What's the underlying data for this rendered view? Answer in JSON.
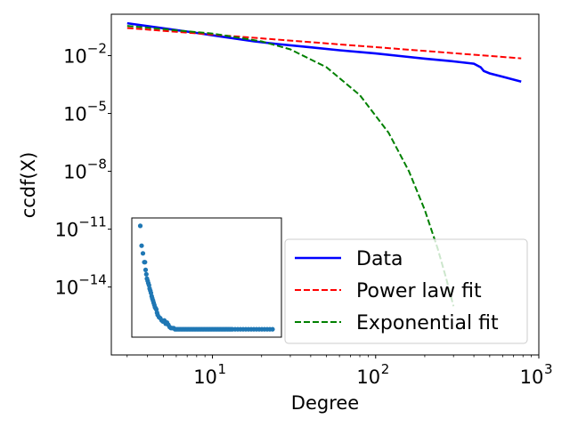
{
  "chart_data": {
    "type": "line",
    "xlabel": "Degree",
    "ylabel": "ccdf(X)",
    "xscale": "log",
    "yscale": "log",
    "xlim": [
      2.4,
      1000
    ],
    "ylim": [
      3e-18,
      1.4
    ],
    "x_ticks": [
      {
        "value": 10,
        "base": "10",
        "exp": "1"
      },
      {
        "value": 100,
        "base": "10",
        "exp": "2"
      },
      {
        "value": 1000,
        "base": "10",
        "exp": "3"
      }
    ],
    "y_ticks": [
      {
        "value": 0.01,
        "base": "10",
        "exp": "−2"
      },
      {
        "value": 1e-05,
        "base": "10",
        "exp": "−5"
      },
      {
        "value": 1e-08,
        "base": "10",
        "exp": "−8"
      },
      {
        "value": 1e-11,
        "base": "10",
        "exp": "−11"
      },
      {
        "value": 1e-14,
        "base": "10",
        "exp": "−14"
      }
    ],
    "series": [
      {
        "name": "Data",
        "color": "#0000ff",
        "style": "solid",
        "x": [
          3,
          5,
          8,
          12,
          18,
          25,
          40,
          60,
          100,
          150,
          200,
          300,
          400,
          440,
          460,
          500,
          600,
          780
        ],
        "y": [
          0.48,
          0.26,
          0.15,
          0.09,
          0.055,
          0.04,
          0.027,
          0.019,
          0.013,
          0.009,
          0.007,
          0.005,
          0.0038,
          0.0025,
          0.0016,
          0.0012,
          0.0008,
          0.00045
        ]
      },
      {
        "name": "Power law fit",
        "color": "#ff0000",
        "style": "dashed",
        "x": [
          3,
          780
        ],
        "y": [
          0.27,
          0.0072
        ]
      },
      {
        "name": "Exponential fit",
        "color": "#008000",
        "style": "dashed",
        "x": [
          3,
          10,
          20,
          30,
          50,
          80,
          120,
          160,
          200,
          240,
          270,
          300
        ],
        "y": [
          0.35,
          0.14,
          0.055,
          0.021,
          0.0025,
          9e-05,
          1e-06,
          1e-08,
          1e-10,
          1e-12,
          3e-14,
          1e-15
        ]
      }
    ],
    "legend": {
      "position": "lower-right"
    },
    "inset": {
      "type": "scatter",
      "color": "#1f77b4",
      "x": [
        1,
        2,
        3,
        4,
        4.5,
        5,
        5.5,
        6,
        6.5,
        7,
        7.5,
        8,
        8.5,
        9,
        9.5,
        10,
        10.5,
        11,
        11.5,
        12,
        12.5,
        13,
        13.5,
        14,
        15,
        16,
        17,
        18,
        19,
        20,
        21,
        22,
        23,
        24,
        25,
        26,
        27,
        28,
        29,
        30,
        31,
        32,
        33,
        34,
        35,
        36,
        37,
        38,
        39,
        40,
        41,
        42,
        43,
        44,
        45,
        46,
        47,
        48,
        49,
        50,
        51,
        52,
        53,
        54,
        55,
        56,
        57,
        58,
        59,
        60,
        61,
        62,
        63,
        64,
        65,
        66,
        67,
        68,
        69,
        70,
        72,
        74,
        76,
        78,
        80,
        82,
        84,
        86,
        88,
        90,
        92,
        94,
        96,
        98,
        100
      ],
      "y": [
        98,
        80,
        73,
        65,
        65,
        58,
        54,
        50,
        48,
        46,
        44,
        41,
        39,
        37,
        34,
        32,
        30,
        28,
        26,
        24,
        23,
        22,
        19,
        17,
        15,
        14,
        12,
        11,
        12,
        9,
        10,
        8,
        6,
        5,
        5,
        5,
        4,
        4,
        4,
        4,
        4,
        4,
        4,
        4,
        4,
        4,
        4,
        4,
        4,
        4,
        4,
        4,
        4,
        4,
        4,
        4,
        4,
        4,
        4,
        4,
        4,
        4,
        4,
        4,
        4,
        4,
        4,
        4,
        4,
        4,
        4,
        4,
        4,
        4,
        4,
        4,
        4,
        4,
        4,
        4,
        4,
        4,
        4,
        4,
        4,
        4,
        4,
        4,
        4,
        4,
        4,
        4,
        4,
        4,
        4
      ]
    }
  }
}
